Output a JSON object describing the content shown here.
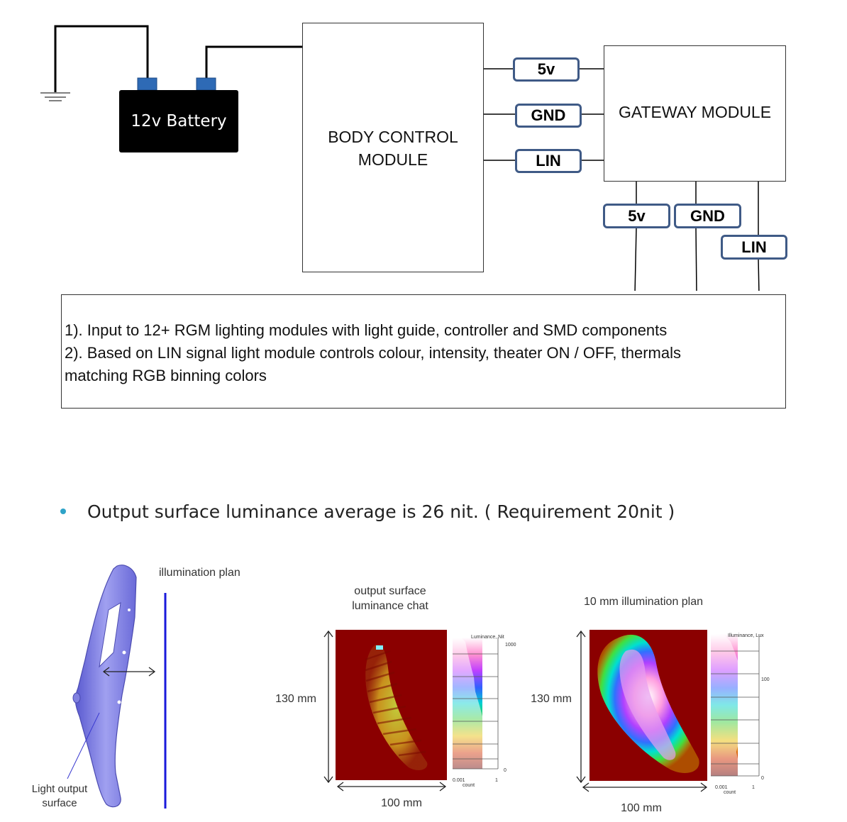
{
  "battery": {
    "label": "12v Battery"
  },
  "bcm": {
    "line1": "BODY CONTROL",
    "line2": "MODULE"
  },
  "gateway": {
    "label": "GATEWAY MODULE"
  },
  "bcm_gateway_signals": [
    "5v",
    "GND",
    "LIN"
  ],
  "gateway_down_signals": [
    "5v",
    "GND",
    "LIN"
  ],
  "notes": {
    "line1": "1). Input to 12+ RGM lighting modules with light guide, controller and SMD components",
    "line2": "2). Based on LIN signal light module controls colour, intensity, theater ON / OFF, thermals",
    "line3": "matching RGB binning colors"
  },
  "bullet": "Output surface luminance average is 26 nit. ( Requirement 20nit )",
  "part_figure": {
    "illumination_plan": "illumination plan",
    "output_line1": "Light output",
    "output_line2": "surface"
  },
  "luminance_chart": {
    "title_line1": "output surface",
    "title_line2": "luminance chat",
    "height_label": "130 mm",
    "width_label": "100 mm",
    "scale_title": "Luminance, Nit",
    "scale_top": "1000",
    "scale_zero": "0",
    "count_min": "0.001",
    "count_max": "1",
    "count_label": "count"
  },
  "illuminance_chart": {
    "title": "10 mm illumination plan",
    "height_label": "130 mm",
    "width_label": "100 mm",
    "scale_title": "Illuminance, Lux",
    "scale_mid": "100",
    "scale_zero": "0",
    "count_min": "0.001",
    "count_max": "1",
    "count_label": "count"
  },
  "colors": {
    "pill_border": "#3f5a86",
    "battery_terminal": "#2e6ab5",
    "chart_bg": "#8b0000",
    "part_fill": "#8c8ce8",
    "plan_line": "#1a1adb"
  }
}
